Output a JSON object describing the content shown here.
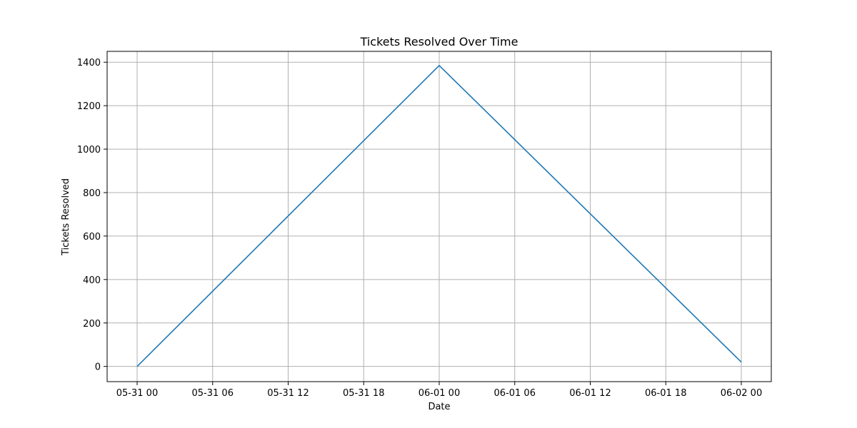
{
  "chart_data": {
    "type": "line",
    "title": "Tickets Resolved Over Time",
    "xlabel": "Date",
    "ylabel": "Tickets Resolved",
    "x_ticks": [
      "05-31 00",
      "05-31 06",
      "05-31 12",
      "05-31 18",
      "06-01 00",
      "06-01 06",
      "06-01 12",
      "06-01 18",
      "06-02 00"
    ],
    "y_ticks": [
      0,
      200,
      400,
      600,
      800,
      1000,
      1200,
      1400
    ],
    "ylim": [
      -70,
      1450
    ],
    "grid": true,
    "series": [
      {
        "color": "#1f77b4",
        "x": [
          "05-31 00",
          "06-01 00",
          "06-02 00"
        ],
        "y": [
          0,
          1385,
          20
        ]
      }
    ]
  }
}
